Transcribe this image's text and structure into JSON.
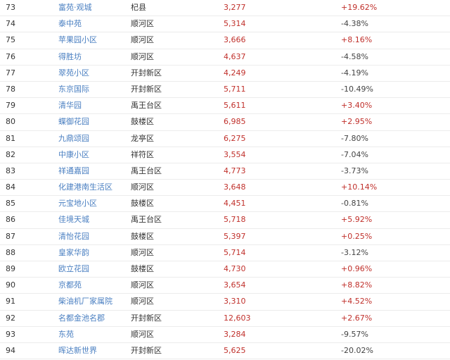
{
  "colors": {
    "link": "#4a7fc1",
    "up": "#c0302b",
    "down": "#444444"
  },
  "rows": [
    {
      "rank": "73",
      "name": "富苑·观城",
      "district": "杞县",
      "price": "3,277",
      "change": "+19.62%"
    },
    {
      "rank": "74",
      "name": "泰中苑",
      "district": "顺河区",
      "price": "5,314",
      "change": "-4.38%"
    },
    {
      "rank": "75",
      "name": "苹果园小区",
      "district": "顺河区",
      "price": "3,666",
      "change": "+8.16%"
    },
    {
      "rank": "76",
      "name": "得胜坊",
      "district": "顺河区",
      "price": "4,637",
      "change": "-4.58%"
    },
    {
      "rank": "77",
      "name": "翠苑小区",
      "district": "开封新区",
      "price": "4,249",
      "change": "-4.19%"
    },
    {
      "rank": "78",
      "name": "东京国际",
      "district": "开封新区",
      "price": "5,711",
      "change": "-10.49%"
    },
    {
      "rank": "79",
      "name": "清华园",
      "district": "禹王台区",
      "price": "5,611",
      "change": "+3.40%"
    },
    {
      "rank": "80",
      "name": "蝶御花园",
      "district": "鼓楼区",
      "price": "6,985",
      "change": "+2.95%"
    },
    {
      "rank": "81",
      "name": "九鼎颂园",
      "district": "龙亭区",
      "price": "6,275",
      "change": "-7.80%"
    },
    {
      "rank": "82",
      "name": "中康小区",
      "district": "祥符区",
      "price": "3,554",
      "change": "-7.04%"
    },
    {
      "rank": "83",
      "name": "祥通嘉园",
      "district": "禹王台区",
      "price": "4,773",
      "change": "-3.73%"
    },
    {
      "rank": "84",
      "name": "化建港南生活区",
      "district": "顺河区",
      "price": "3,648",
      "change": "+10.14%"
    },
    {
      "rank": "85",
      "name": "元宝地小区",
      "district": "鼓楼区",
      "price": "4,451",
      "change": "-0.81%"
    },
    {
      "rank": "86",
      "name": "佳境天城",
      "district": "禹王台区",
      "price": "5,718",
      "change": "+5.92%"
    },
    {
      "rank": "87",
      "name": "清怡花园",
      "district": "鼓楼区",
      "price": "5,397",
      "change": "+0.25%"
    },
    {
      "rank": "88",
      "name": "皇家华韵",
      "district": "顺河区",
      "price": "5,714",
      "change": "-3.12%"
    },
    {
      "rank": "89",
      "name": "欧立花园",
      "district": "鼓楼区",
      "price": "4,730",
      "change": "+0.96%"
    },
    {
      "rank": "90",
      "name": "京都苑",
      "district": "顺河区",
      "price": "3,654",
      "change": "+8.82%"
    },
    {
      "rank": "91",
      "name": "柴油机厂家属院",
      "district": "顺河区",
      "price": "3,310",
      "change": "+4.52%"
    },
    {
      "rank": "92",
      "name": "名都金池名郡",
      "district": "开封新区",
      "price": "12,603",
      "change": "+2.67%"
    },
    {
      "rank": "93",
      "name": "东苑",
      "district": "顺河区",
      "price": "3,284",
      "change": "-9.57%"
    },
    {
      "rank": "94",
      "name": "晖达新世界",
      "district": "开封新区",
      "price": "5,625",
      "change": "-20.02%"
    }
  ]
}
